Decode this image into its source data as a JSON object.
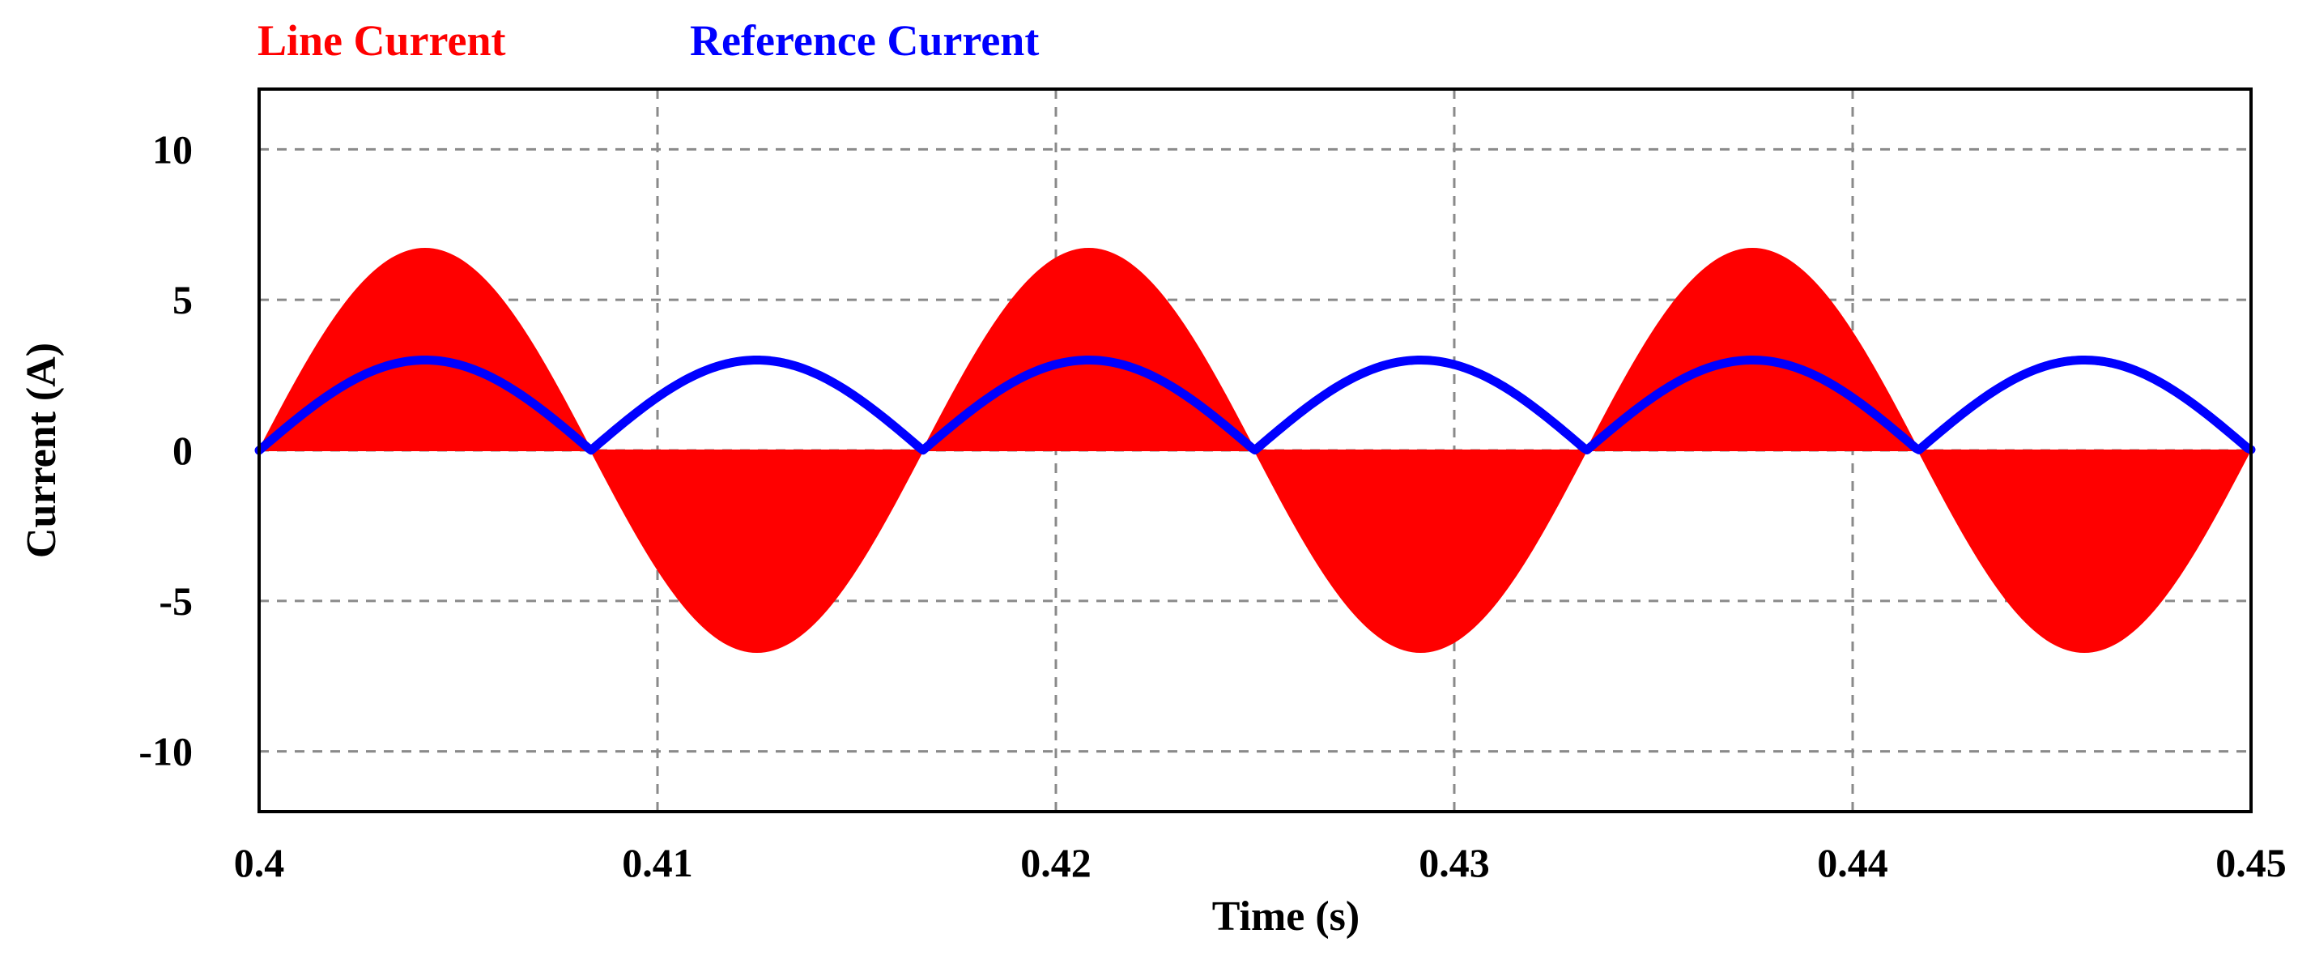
{
  "legend": {
    "line_current_label": "Line Current",
    "reference_current_label": "Reference Current"
  },
  "axes": {
    "xlabel": "Time (s)",
    "ylabel": "Current (A)"
  },
  "colors": {
    "line_current": "#ff0000",
    "reference_current": "#0000ff",
    "grid": "#8a8a8a"
  },
  "chart_data": {
    "type": "area",
    "xlabel": "Time (s)",
    "ylabel": "Current (A)",
    "xlim": [
      0.4,
      0.45
    ],
    "ylim": [
      -12,
      12
    ],
    "x_ticks": [
      0.4,
      0.41,
      0.42,
      0.43,
      0.44,
      0.45
    ],
    "x_tick_labels": [
      "0.4",
      "0.41",
      "0.42",
      "0.43",
      "0.44",
      "0.45"
    ],
    "y_ticks": [
      10,
      5,
      0,
      -5,
      -10
    ],
    "y_tick_labels": [
      "10",
      "5",
      "0",
      "-5",
      "-10"
    ],
    "grid": true,
    "legend_position": "top-left (above plot)",
    "series": [
      {
        "name": "Line Current",
        "color": "#ff0000",
        "style": "filled envelope (high-frequency switching)",
        "waveform": "sinusoid alternating sign each half-cycle",
        "amplitude": 6.7,
        "half_period_s": 0.00833,
        "start_x": 0.4,
        "zero_crossings": [
          0.4,
          0.40833,
          0.41667,
          0.425,
          0.43333,
          0.44167,
          0.45
        ],
        "peaks": [
          {
            "x": 0.40417,
            "y": 6.7
          },
          {
            "x": 0.4125,
            "y": -6.7
          },
          {
            "x": 0.42083,
            "y": 6.7
          },
          {
            "x": 0.42917,
            "y": -6.7
          },
          {
            "x": 0.4375,
            "y": 6.7
          },
          {
            "x": 0.44583,
            "y": -6.7
          }
        ]
      },
      {
        "name": "Reference Current",
        "color": "#0000ff",
        "style": "thick line",
        "waveform": "rectified sinusoid",
        "amplitude": 3.0,
        "half_period_s": 0.00833,
        "start_x": 0.4,
        "peaks": [
          {
            "x": 0.40417,
            "y": 3.0
          },
          {
            "x": 0.4125,
            "y": 3.0
          },
          {
            "x": 0.42083,
            "y": 3.0
          },
          {
            "x": 0.42917,
            "y": 3.0
          },
          {
            "x": 0.4375,
            "y": 3.0
          },
          {
            "x": 0.44583,
            "y": 3.0
          }
        ]
      }
    ]
  }
}
